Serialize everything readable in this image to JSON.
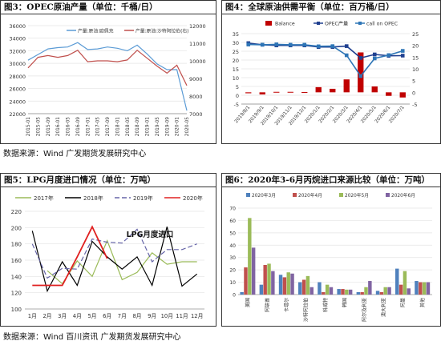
{
  "source_top": "数据来源：Wind 广发期货发展研究中心",
  "source_bottom": "数据来源：Wind 百川资讯 广发期货发展研究中心",
  "chart_data": [
    {
      "type": "line",
      "title": "图3：OPEC原油产量（单位：千桶/日）",
      "x": [
        "2015-01",
        "2015-05",
        "2015-09",
        "2016-01",
        "2016-05",
        "2016-09",
        "2017-01",
        "2017-05",
        "2017-09",
        "2018-01",
        "2018-05",
        "2018-09",
        "2019-01",
        "2019-05",
        "2019-09",
        "2020-01",
        "2020-05"
      ],
      "ylim_left": [
        22000,
        36000
      ],
      "yticks_left": [
        22000,
        24000,
        26000,
        28000,
        30000,
        32000,
        34000,
        36000
      ],
      "ylim_right": [
        7000,
        12000
      ],
      "yticks_right": [
        7000,
        8000,
        9000,
        10000,
        11000,
        12000
      ],
      "series": [
        {
          "name": "产量:原油:欧佩克",
          "axis": "left",
          "color": "#5b9bd5",
          "values": [
            30500,
            31400,
            32300,
            32500,
            32600,
            33300,
            32200,
            32300,
            32600,
            32400,
            32000,
            32900,
            31500,
            29900,
            29000,
            29000,
            22500
          ]
        },
        {
          "name": "产量:原油:沙特阿拉伯(右)",
          "axis": "right",
          "color": "#c0504d",
          "values": [
            9600,
            10200,
            10300,
            10200,
            10300,
            10600,
            9950,
            10000,
            10000,
            9950,
            10050,
            10600,
            10150,
            9700,
            9300,
            9750,
            8600
          ]
        }
      ]
    },
    {
      "type": "bar+line",
      "title": "图4：全球原油供需平衡（单位：百万桶/日）",
      "x": [
        "2019/8/1",
        "2019/9/1",
        "2019/10/1",
        "2019/11/1",
        "2019/12/1",
        "2020/1/1",
        "2020/2/1",
        "2020/3/1",
        "2020/4/1",
        "2020/5/1",
        "2020/6/1",
        "2020/7/1"
      ],
      "ylim_left": [
        -5,
        35
      ],
      "yticks_left": [
        -5,
        0,
        5,
        10,
        15,
        20,
        25,
        30,
        35
      ],
      "ylim_right": [
        -5,
        25
      ],
      "yticks_right": [
        -5,
        0,
        5,
        10,
        15,
        20,
        25
      ],
      "legend": "top",
      "series": [
        {
          "name": "Balance",
          "kind": "bar",
          "axis": "right",
          "color": "#c00000",
          "values": [
            -0.4,
            -0.9,
            0.2,
            0.2,
            0.1,
            2.2,
            1.5,
            5.5,
            17.0,
            2.5,
            -1.5,
            -2.2
          ]
        },
        {
          "name": "OPEC产量",
          "kind": "line",
          "axis": "left",
          "color": "#1f3f8f",
          "values": [
            29.6,
            28.7,
            28.3,
            28.3,
            28.3,
            27.4,
            27.4,
            27.9,
            21.2,
            23.2,
            22.4,
            22.5
          ]
        },
        {
          "name": "call on OPEC",
          "kind": "line",
          "axis": "left",
          "color": "#2e75b6",
          "values": [
            28.8,
            28.7,
            28.9,
            28.7,
            28.7,
            27.8,
            27.9,
            22.7,
            10.9,
            20.9,
            22.8,
            25.2
          ]
        }
      ]
    },
    {
      "type": "line",
      "title": "图5：LPG月度进口情况（单位：万吨）",
      "annotation": "LPG月度进口",
      "x": [
        "1月",
        "2月",
        "3月",
        "4月",
        "5月",
        "6月",
        "7月",
        "8月",
        "9月",
        "10月",
        "11月",
        "12月"
      ],
      "ylim": [
        100,
        220
      ],
      "yticks": [
        100,
        120,
        140,
        160,
        180,
        200,
        220
      ],
      "legend": "top",
      "series": [
        {
          "name": "2017年",
          "color": "#9bbb59",
          "dash": "",
          "values": [
            null,
            147,
            131,
            159,
            140,
            184,
            136,
            145,
            169,
            155,
            158,
            158
          ]
        },
        {
          "name": "2018年",
          "color": "#000000",
          "dash": "",
          "values": [
            196,
            122,
            158,
            129,
            183,
            164,
            149,
            164,
            129,
            201,
            128,
            143
          ]
        },
        {
          "name": "2019年",
          "color": "#6665a8",
          "dash": "6 3",
          "values": [
            180,
            138,
            150,
            149,
            186,
            182,
            181,
            198,
            158,
            173,
            173,
            180
          ]
        },
        {
          "name": "2020年",
          "color": "#e02020",
          "dash": "",
          "values": [
            129,
            129,
            129,
            164,
            201,
            162,
            null,
            null,
            null,
            null,
            null,
            null
          ]
        }
      ]
    },
    {
      "type": "bar",
      "title": "图6：2020年3-6月丙烷进口来源比较（单位：万吨）",
      "categories": [
        "美国",
        "阿联酋",
        "卡塔尔",
        "沙特阿拉伯",
        "科威特",
        "韩国",
        "阿尔及利亚",
        "澳大利亚",
        "阿曼",
        "其他"
      ],
      "ylim": [
        0,
        70
      ],
      "yticks": [
        0,
        10,
        20,
        30,
        40,
        50,
        60,
        70
      ],
      "legend": "top",
      "series": [
        {
          "name": "2020年3月",
          "color": "#4f81bd",
          "values": [
            2,
            8,
            16,
            10,
            10,
            4.5,
            2,
            3,
            21,
            11
          ]
        },
        {
          "name": "2020年4月",
          "color": "#c0504d",
          "values": [
            22,
            24,
            14,
            12,
            2,
            4.5,
            2,
            2,
            8,
            10
          ]
        },
        {
          "name": "2020年5月",
          "color": "#9bbb59",
          "values": [
            62,
            25,
            18,
            15,
            8,
            4,
            6,
            6,
            19,
            10
          ]
        },
        {
          "name": "2020年6月",
          "color": "#8064a2",
          "values": [
            38,
            19,
            17,
            6,
            6,
            4,
            11,
            6,
            5,
            10
          ]
        }
      ]
    }
  ]
}
